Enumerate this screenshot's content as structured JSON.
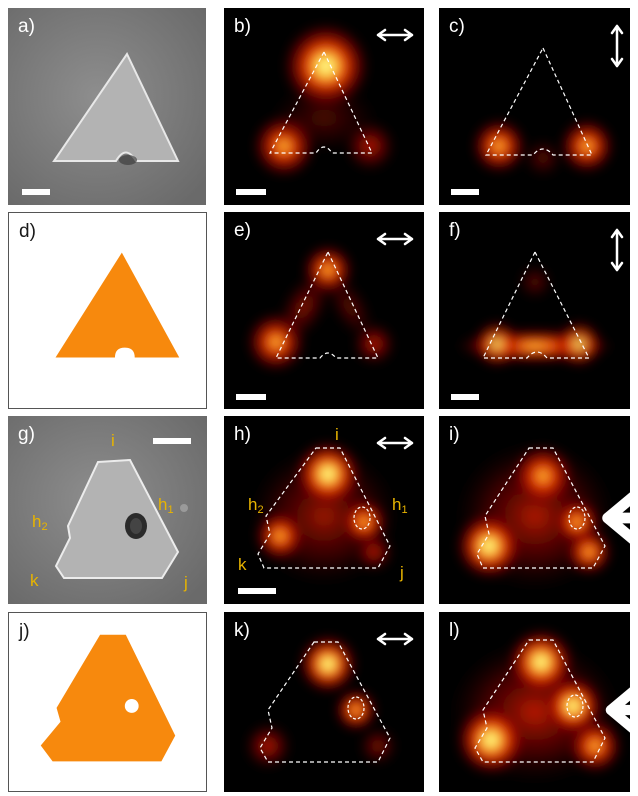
{
  "panels": {
    "a": {
      "label": "a)"
    },
    "b": {
      "label": "b)"
    },
    "c": {
      "label": "c)"
    },
    "d": {
      "label": "d)"
    },
    "e": {
      "label": "e)"
    },
    "f": {
      "label": "f)"
    },
    "g": {
      "label": "g)"
    },
    "h": {
      "label": "h)"
    },
    "i": {
      "label": "i)"
    },
    "j": {
      "label": "j)"
    },
    "k": {
      "label": "k)"
    },
    "l": {
      "label": "l)"
    }
  },
  "corner_labels": {
    "i": "i",
    "h1": "h",
    "h1_sub": "1",
    "h2": "h",
    "h2_sub": "2",
    "k": "k",
    "j": "j"
  },
  "colors": {
    "particle_fill": "#f7890d",
    "heatmap_bright": "#ffff66",
    "heatmap_mid": "#e01a00",
    "outline": "#ffffff",
    "corner_label": "#e8b400"
  },
  "icons": {
    "horizontal": "horizontal-double-arrow-icon",
    "vertical": "vertical-double-arrow-icon",
    "cross": "cross-arrows-icon"
  }
}
